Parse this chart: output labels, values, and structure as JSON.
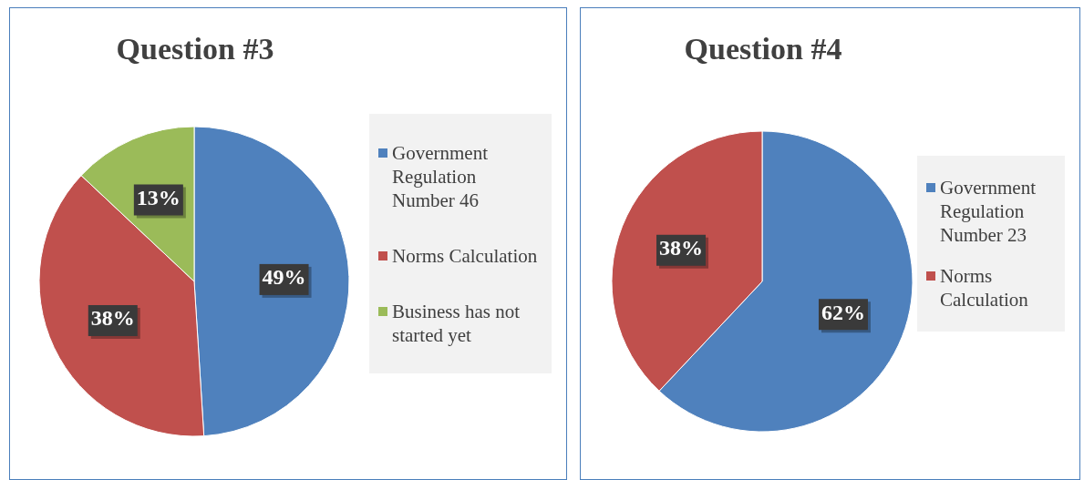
{
  "chart_data": [
    {
      "type": "pie",
      "title": "Question #3",
      "categories": [
        "Government Regulation Number 46",
        "Norms Calculation",
        "Business has not started yet"
      ],
      "values": [
        49,
        38,
        13
      ],
      "colors": [
        "#4f81bd",
        "#c0504d",
        "#9bbb59"
      ],
      "value_labels": [
        "49%",
        "38%",
        "13%"
      ],
      "legend": "right"
    },
    {
      "type": "pie",
      "title": "Question #4",
      "categories": [
        "Government Regulation Number 23",
        "Norms Calculation"
      ],
      "values": [
        62,
        38
      ],
      "colors": [
        "#4f81bd",
        "#c0504d"
      ],
      "value_labels": [
        "62%",
        "38%"
      ],
      "legend": "right"
    }
  ]
}
